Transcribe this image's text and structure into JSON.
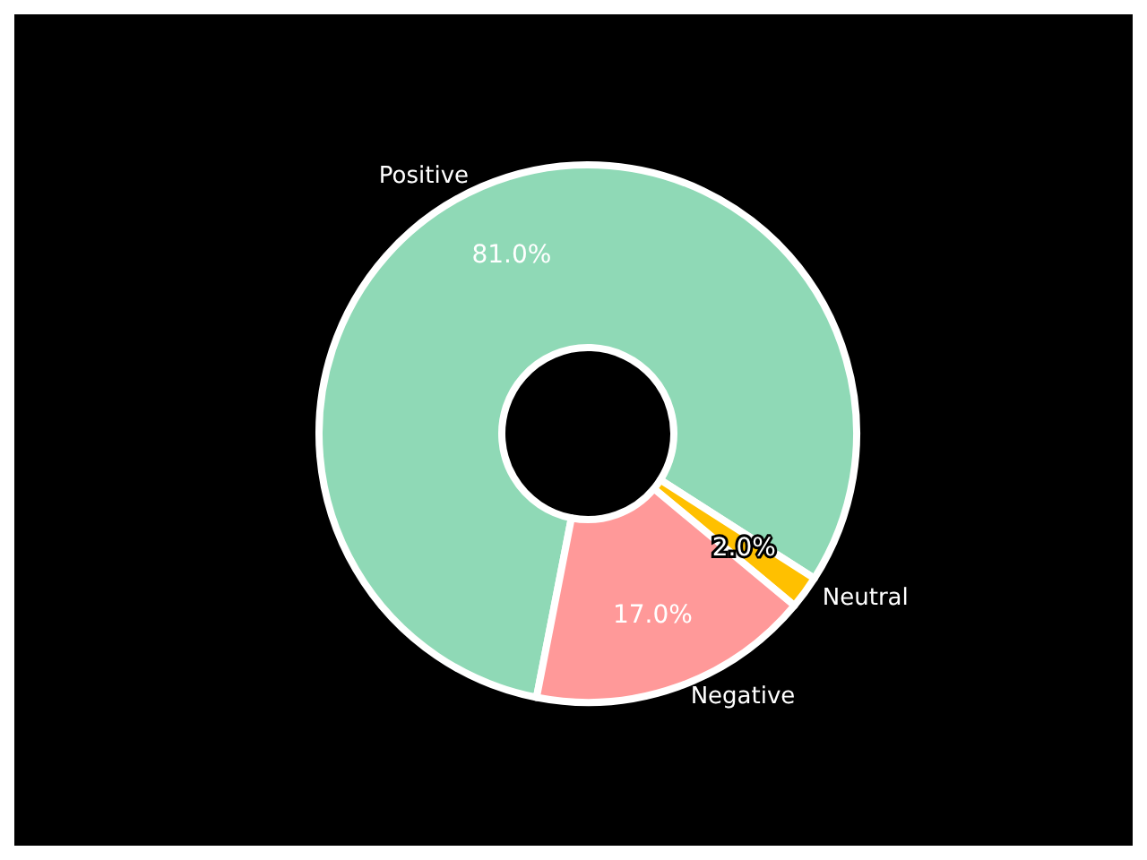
{
  "chart_data": {
    "type": "donut",
    "categories": [
      "Positive",
      "Neutral",
      "Negative"
    ],
    "values": [
      81,
      2,
      17
    ],
    "value_labels": [
      "81.0%",
      "2.0%",
      "17.0%"
    ],
    "colors": [
      "#8fd9b6",
      "#ffc000",
      "#ff9999"
    ]
  }
}
